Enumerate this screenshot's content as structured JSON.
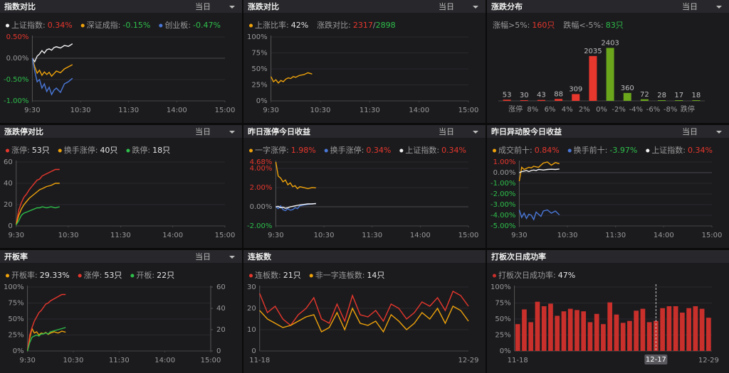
{
  "panels": [
    {
      "title": "指数对比",
      "menu": "当日",
      "type": "line",
      "signed_ticks": true,
      "xlim": [
        0,
        240
      ],
      "xticks": [
        {
          "value": 0,
          "label": "9:30"
        },
        {
          "value": 60,
          "label": "10:30"
        },
        {
          "value": 120,
          "label": "11:30"
        },
        {
          "value": 180,
          "label": "14:00"
        },
        {
          "value": 240,
          "label": "15:00"
        }
      ],
      "ylim": [
        -1,
        0.5
      ],
      "yticks": [
        {
          "value": 0.5,
          "label": "0.50%"
        },
        {
          "value": 0,
          "label": "0.00%"
        },
        {
          "value": -0.5,
          "label": "-0.50%"
        },
        {
          "value": -1,
          "label": "-1.00%"
        }
      ],
      "x": [
        0,
        3,
        6,
        9,
        12,
        15,
        18,
        21,
        24,
        27,
        30,
        35,
        40,
        45,
        50
      ],
      "series": [
        {
          "name": "上证指数:",
          "value_label": "0.34%",
          "color": "#f2f2f2",
          "value_color": "#e8372c",
          "values": [
            0,
            -0.08,
            0.05,
            0.1,
            0.18,
            0.12,
            0.2,
            0.22,
            0.19,
            0.25,
            0.27,
            0.24,
            0.3,
            0.28,
            0.34
          ]
        },
        {
          "name": "深证成指:",
          "value_label": "-0.15%",
          "color": "#f0a30a",
          "value_color": "#2fbf4a",
          "values": [
            0,
            -0.2,
            -0.35,
            -0.28,
            -0.4,
            -0.32,
            -0.38,
            -0.33,
            -0.42,
            -0.36,
            -0.3,
            -0.34,
            -0.25,
            -0.2,
            -0.15
          ]
        },
        {
          "name": "创业板:",
          "value_label": "-0.47%",
          "color": "#4a78d8",
          "value_color": "#2fbf4a",
          "values": [
            0,
            -0.3,
            -0.55,
            -0.5,
            -0.7,
            -0.6,
            -0.78,
            -0.68,
            -0.85,
            -0.75,
            -0.7,
            -0.8,
            -0.6,
            -0.55,
            -0.47
          ]
        }
      ]
    },
    {
      "title": "涨跌对比",
      "menu": "当日",
      "type": "line",
      "xlim": [
        0,
        240
      ],
      "xticks": [
        {
          "value": 0,
          "label": "9:30"
        },
        {
          "value": 60,
          "label": "10:30"
        },
        {
          "value": 120,
          "label": "11:30"
        },
        {
          "value": 180,
          "label": "14:00"
        },
        {
          "value": 240,
          "label": "15:00"
        }
      ],
      "ylim": [
        0,
        100
      ],
      "yticks": [
        {
          "value": 0,
          "label": "0%"
        },
        {
          "value": 25,
          "label": "25%"
        },
        {
          "value": 50,
          "label": "50%"
        },
        {
          "value": 75,
          "label": "75%"
        },
        {
          "value": 100,
          "label": "100%"
        }
      ],
      "x": [
        0,
        3,
        6,
        9,
        12,
        15,
        18,
        21,
        24,
        27,
        30,
        35,
        40,
        45,
        50
      ],
      "series": [
        {
          "name": "上涨比率:",
          "value_label": "42%",
          "color": "#f0a30a",
          "value_color": "#e6e6e6",
          "values": [
            38,
            30,
            33,
            28,
            32,
            30,
            34,
            36,
            35,
            38,
            37,
            40,
            41,
            44,
            42
          ]
        }
      ],
      "extra": [
        {
          "label": "涨跌对比:",
          "up": "2317",
          "sep": "/",
          "down": "2898"
        }
      ]
    },
    {
      "title": "涨跌分布",
      "menu": "当日",
      "type": "bar",
      "show_values": true,
      "ylim": [
        0,
        2900
      ],
      "extra": [
        {
          "label": "涨幅>5%:",
          "value": "160只",
          "value_color": "#e8372c"
        },
        {
          "label": "跌幅<-5%:",
          "value": "83只",
          "value_color": "#2fbf4a"
        }
      ],
      "values": [
        53,
        30,
        43,
        88,
        309,
        2035,
        2403,
        360,
        72,
        28,
        17,
        18
      ],
      "colors": [
        "#e8372c",
        "#e8372c",
        "#e8372c",
        "#e8372c",
        "#e8372c",
        "#e8372c",
        "#6aa51c",
        "#6aa51c",
        "#6aa51c",
        "#6aa51c",
        "#6aa51c",
        "#6aa51c"
      ],
      "boundary_labels": [
        "涨停",
        "8%",
        "6%",
        "4%",
        "2%",
        "0%",
        "-2%",
        "-4%",
        "-6%",
        "-8%",
        "跌停"
      ]
    },
    {
      "title": "涨跌停对比",
      "menu": "当日",
      "type": "line",
      "xlim": [
        0,
        240
      ],
      "xticks": [
        {
          "value": 0,
          "label": "9:30"
        },
        {
          "value": 60,
          "label": "10:30"
        },
        {
          "value": 120,
          "label": "11:30"
        },
        {
          "value": 180,
          "label": "14:00"
        },
        {
          "value": 240,
          "label": "15:00"
        }
      ],
      "ylim": [
        0,
        60
      ],
      "yticks": [
        0,
        20,
        40,
        60
      ],
      "x": [
        0,
        3,
        6,
        9,
        12,
        15,
        18,
        21,
        24,
        27,
        30,
        35,
        40,
        45,
        50
      ],
      "series": [
        {
          "name": "涨停:",
          "value_label": "53只",
          "color": "#e8372c",
          "value_color": "#e6e6e6",
          "values": [
            2,
            15,
            22,
            27,
            30,
            34,
            37,
            40,
            43,
            44,
            47,
            49,
            51,
            53,
            53
          ]
        },
        {
          "name": "换手涨停:",
          "value_label": "40只",
          "color": "#f0a30a",
          "value_color": "#e6e6e6",
          "values": [
            1,
            10,
            16,
            20,
            23,
            26,
            28,
            30,
            32,
            34,
            35,
            37,
            38,
            40,
            40
          ]
        },
        {
          "name": "跌停:",
          "value_label": "18只",
          "color": "#2fbf4a",
          "value_color": "#e6e6e6",
          "values": [
            1,
            5,
            10,
            12,
            13,
            14,
            15,
            16,
            17,
            17,
            18,
            17,
            18,
            17,
            18
          ]
        }
      ]
    },
    {
      "title": "昨日涨停今日收益",
      "menu": "当日",
      "type": "line",
      "signed_ticks": true,
      "xlim": [
        0,
        240
      ],
      "xticks": [
        {
          "value": 0,
          "label": "9:30"
        },
        {
          "value": 60,
          "label": "10:30"
        },
        {
          "value": 120,
          "label": "11:30"
        },
        {
          "value": 180,
          "label": "14:00"
        },
        {
          "value": 240,
          "label": "15:00"
        }
      ],
      "ylim": [
        -2,
        4.68
      ],
      "yticks": [
        {
          "value": 4.68,
          "label": "4.68%"
        },
        {
          "value": 4,
          "label": "4.00%"
        },
        {
          "value": 2,
          "label": "2.00%"
        },
        {
          "value": 0,
          "label": "0.00%"
        },
        {
          "value": -2,
          "label": "-2.00%"
        }
      ],
      "x": [
        0,
        3,
        6,
        9,
        12,
        15,
        18,
        21,
        24,
        27,
        30,
        35,
        40,
        45,
        50
      ],
      "series": [
        {
          "name": "一字涨停:",
          "value_label": "1.98%",
          "color": "#f0a30a",
          "value_color": "#e8372c",
          "values": [
            4.68,
            3.2,
            3.0,
            2.6,
            2.8,
            2.3,
            2.5,
            2.1,
            2.2,
            1.9,
            2.1,
            2.0,
            1.9,
            2.0,
            1.98
          ]
        },
        {
          "name": "换手涨停:",
          "value_label": "0.34%",
          "color": "#4a78d8",
          "value_color": "#e8372c",
          "values": [
            0,
            -0.2,
            0.1,
            -0.3,
            -0.4,
            -0.2,
            -0.35,
            -0.3,
            -0.1,
            -0.2,
            0.1,
            0.2,
            0.25,
            0.3,
            0.34
          ]
        },
        {
          "name": "上证指数:",
          "value_label": "0.34%",
          "color": "#f2f2f2",
          "value_color": "#e8372c",
          "values": [
            0,
            0.05,
            -0.1,
            -0.05,
            -0.15,
            -0.1,
            0,
            0.05,
            0.1,
            0.15,
            0.2,
            0.25,
            0.3,
            0.3,
            0.34
          ]
        }
      ]
    },
    {
      "title": "昨日异动股今日收益",
      "menu": "当日",
      "type": "line",
      "signed_ticks": true,
      "xlim": [
        0,
        240
      ],
      "xticks": [
        {
          "value": 0,
          "label": "9:30"
        },
        {
          "value": 60,
          "label": "10:30"
        },
        {
          "value": 120,
          "label": "11:30"
        },
        {
          "value": 180,
          "label": "14:00"
        },
        {
          "value": 240,
          "label": "15:00"
        }
      ],
      "ylim": [
        -5,
        1
      ],
      "yticks": [
        {
          "value": 1,
          "label": "1.00%"
        },
        {
          "value": 0,
          "label": "0.00%"
        },
        {
          "value": -1,
          "label": "-1.00%"
        },
        {
          "value": -2,
          "label": "-2.00%"
        },
        {
          "value": -3,
          "label": "-3.00%"
        },
        {
          "value": -4,
          "label": "-4.00%"
        },
        {
          "value": -5,
          "label": "-5.00%"
        }
      ],
      "x": [
        0,
        3,
        6,
        9,
        12,
        15,
        18,
        21,
        24,
        27,
        30,
        35,
        40,
        45,
        50
      ],
      "series": [
        {
          "name": "成交前十:",
          "value_label": "0.84%",
          "color": "#f0a30a",
          "value_color": "#e8372c",
          "values": [
            -0.8,
            0.5,
            0.3,
            0.4,
            0.5,
            0.45,
            0.6,
            0.55,
            0.5,
            0.7,
            0.9,
            1.0,
            0.7,
            0.95,
            0.84
          ]
        },
        {
          "name": "换手前十:",
          "value_label": "-3.97%",
          "color": "#4a78d8",
          "value_color": "#2fbf4a",
          "values": [
            -3.5,
            -4.2,
            -3.8,
            -4.3,
            -3.9,
            -4.0,
            -4.4,
            -3.7,
            -3.9,
            -4.1,
            -3.6,
            -3.5,
            -3.8,
            -3.6,
            -3.97
          ]
        },
        {
          "name": "上证指数:",
          "value_label": "0.34%",
          "color": "#f2f2f2",
          "value_color": "#e8372c",
          "values": [
            0,
            0.1,
            0.15,
            0.2,
            0.1,
            0.2,
            0.25,
            0.2,
            0.3,
            0.28,
            0.25,
            0.3,
            0.32,
            0.3,
            0.34
          ]
        }
      ]
    },
    {
      "title": "开板率",
      "menu": "当日",
      "type": "line",
      "xlim": [
        0,
        240
      ],
      "xticks": [
        {
          "value": 0,
          "label": "9:30"
        },
        {
          "value": 60,
          "label": "10:30"
        },
        {
          "value": 120,
          "label": "11:30"
        },
        {
          "value": 180,
          "label": "14:00"
        },
        {
          "value": 240,
          "label": "15:00"
        }
      ],
      "ylim": [
        0,
        100
      ],
      "yticks": [
        {
          "value": 0,
          "label": "0%"
        },
        {
          "value": 25,
          "label": "25%"
        },
        {
          "value": 50,
          "label": "50%"
        },
        {
          "value": 75,
          "label": "75%"
        },
        {
          "value": 100,
          "label": "100%"
        }
      ],
      "y2lim": [
        0,
        60
      ],
      "y2ticks": [
        0,
        20,
        40,
        60
      ],
      "x": [
        0,
        3,
        6,
        9,
        12,
        15,
        18,
        21,
        24,
        27,
        30,
        35,
        40,
        45,
        50
      ],
      "series": [
        {
          "name": "开板率:",
          "value_label": "29.33%",
          "color": "#f0a30a",
          "value_color": "#e6e6e6",
          "values": [
            0,
            20,
            35,
            28,
            30,
            25,
            28,
            27,
            29,
            26,
            28,
            30,
            28,
            31,
            29.33
          ]
        },
        {
          "name": "涨停:",
          "value_label": "53只",
          "color": "#e8372c",
          "value_color": "#e6e6e6",
          "axis": "y2",
          "values": [
            1,
            15,
            22,
            28,
            32,
            36,
            38,
            41,
            44,
            45,
            47,
            49,
            51,
            53,
            53
          ]
        },
        {
          "name": "开板:",
          "value_label": "22只",
          "color": "#2fbf4a",
          "value_color": "#e6e6e6",
          "axis": "y2",
          "values": [
            0,
            8,
            13,
            14,
            15,
            14,
            16,
            16,
            17,
            16,
            18,
            19,
            20,
            21,
            22
          ]
        }
      ]
    },
    {
      "title": "连板数",
      "type": "line",
      "ylim": [
        0,
        30
      ],
      "yticks": [
        0,
        10,
        20,
        30
      ],
      "categories": [
        "11-18",
        null,
        null,
        null,
        null,
        null,
        null,
        null,
        null,
        null,
        null,
        null,
        null,
        null,
        null,
        null,
        null,
        null,
        null,
        null,
        null,
        null,
        null,
        null,
        null,
        null,
        null,
        "12-29"
      ],
      "series": [
        {
          "name": "连板数:",
          "value_label": "21只",
          "color": "#e8372c",
          "value_color": "#e6e6e6",
          "values": [
            27,
            18,
            21,
            15,
            12,
            17,
            20,
            25,
            15,
            13,
            22,
            14,
            26,
            17,
            16,
            19,
            14,
            22,
            20,
            15,
            18,
            23,
            21,
            25,
            19,
            28,
            26,
            21
          ]
        },
        {
          "name": "非一字连板数:",
          "value_label": "14只",
          "color": "#f0a30a",
          "value_color": "#e6e6e6",
          "values": [
            19,
            15,
            13,
            11,
            12,
            14,
            16,
            17,
            9,
            11,
            18,
            10,
            20,
            13,
            12,
            14,
            9,
            17,
            14,
            10,
            13,
            18,
            15,
            20,
            13,
            21,
            19,
            14
          ]
        }
      ]
    },
    {
      "title": "打板次日成功率",
      "type": "bar",
      "cursor": 21,
      "ylim": [
        0,
        100
      ],
      "yticks": [
        {
          "value": 0,
          "label": "0%"
        },
        {
          "value": 25,
          "label": "25%"
        },
        {
          "value": 50,
          "label": "50%"
        },
        {
          "value": 75,
          "label": "75%"
        },
        {
          "value": 100,
          "label": "100%"
        }
      ],
      "categories": [
        "11-18",
        null,
        null,
        null,
        null,
        null,
        null,
        null,
        null,
        null,
        null,
        null,
        null,
        null,
        null,
        null,
        null,
        null,
        null,
        null,
        null,
        "12-17",
        null,
        null,
        null,
        null,
        null,
        null,
        null,
        "12-29"
      ],
      "series": [
        {
          "name": "打板次日成功率:",
          "value_label": "47%",
          "color": "#c9302c",
          "value_color": "#e6e6e6",
          "values": [
            42,
            65,
            45,
            77,
            70,
            74,
            55,
            62,
            66,
            64,
            62,
            45,
            58,
            42,
            76,
            57,
            44,
            47,
            63,
            66,
            45,
            47,
            67,
            70,
            70,
            60,
            67,
            70,
            66,
            52
          ]
        }
      ]
    }
  ]
}
